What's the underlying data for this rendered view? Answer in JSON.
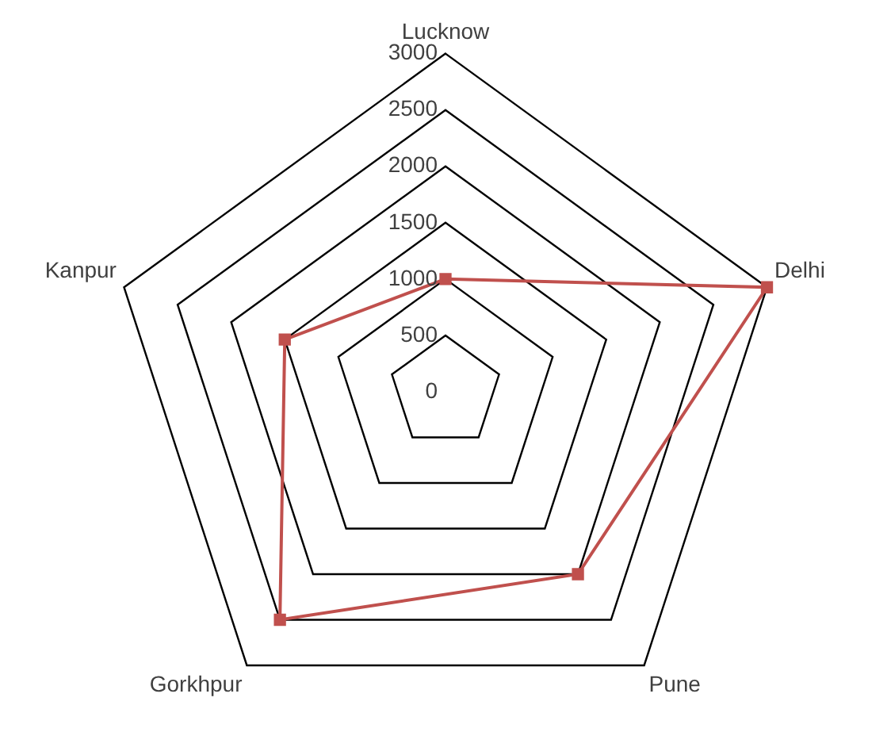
{
  "chart_data": {
    "type": "radar",
    "categories": [
      "Lucknow",
      "Delhi",
      "Pune",
      "Gorkhpur",
      "Kanpur"
    ],
    "series": [
      {
        "color": "#c0504d",
        "values": [
          1000,
          3000,
          2000,
          2500,
          1500
        ]
      }
    ],
    "ylim": [
      0,
      3000
    ],
    "yticks": [
      0,
      500,
      1000,
      1500,
      2000,
      2500,
      3000
    ],
    "grid": true,
    "legend": false,
    "marker": "square"
  }
}
